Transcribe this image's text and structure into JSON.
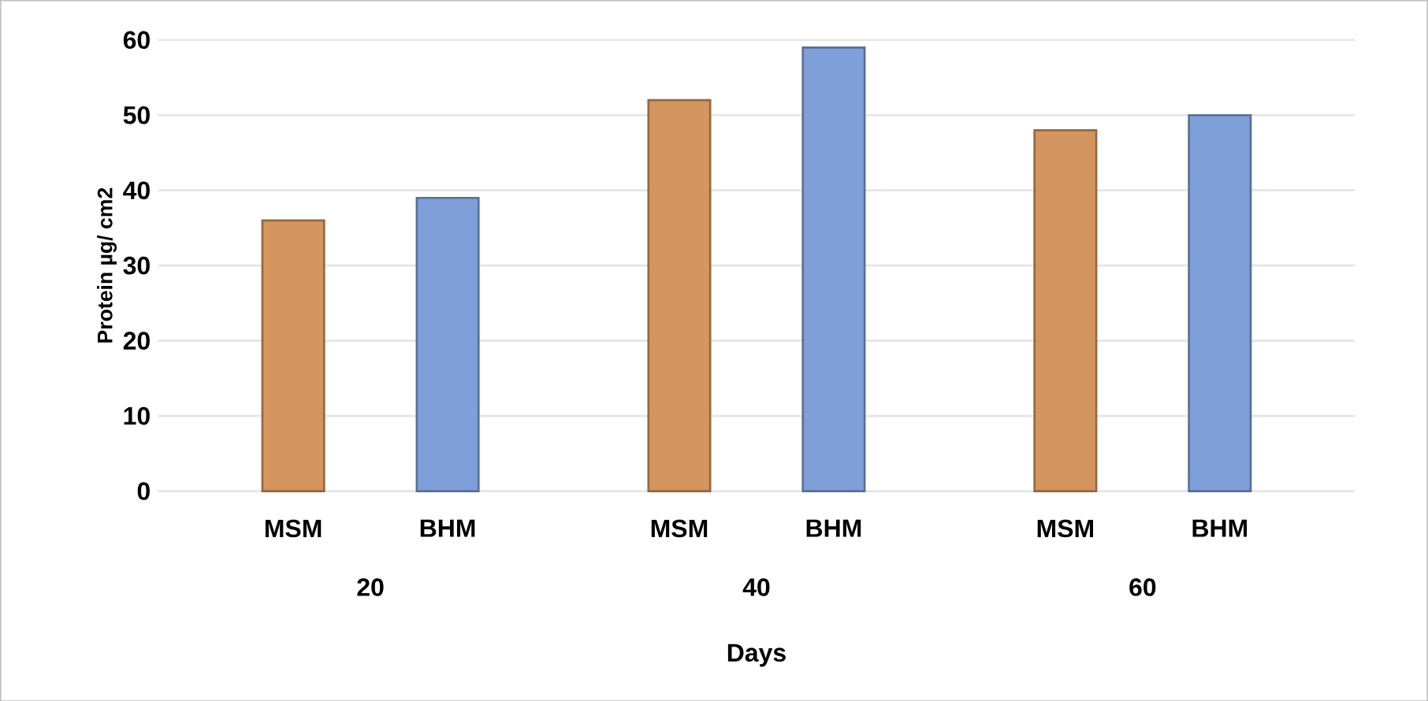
{
  "chart_data": {
    "type": "bar",
    "xlabel": "Days",
    "ylabel": "Protein µg/ cm2",
    "categories": [
      "20",
      "40",
      "60"
    ],
    "series": [
      {
        "name": "MSM",
        "color": "#d4955f",
        "values": [
          36,
          52,
          48
        ]
      },
      {
        "name": "BHM",
        "color": "#7f9fd8",
        "values": [
          39,
          59,
          50
        ]
      }
    ],
    "ylim": [
      0,
      60
    ],
    "yticks": [
      0,
      10,
      20,
      30,
      40,
      50,
      60
    ],
    "grid": "y"
  }
}
